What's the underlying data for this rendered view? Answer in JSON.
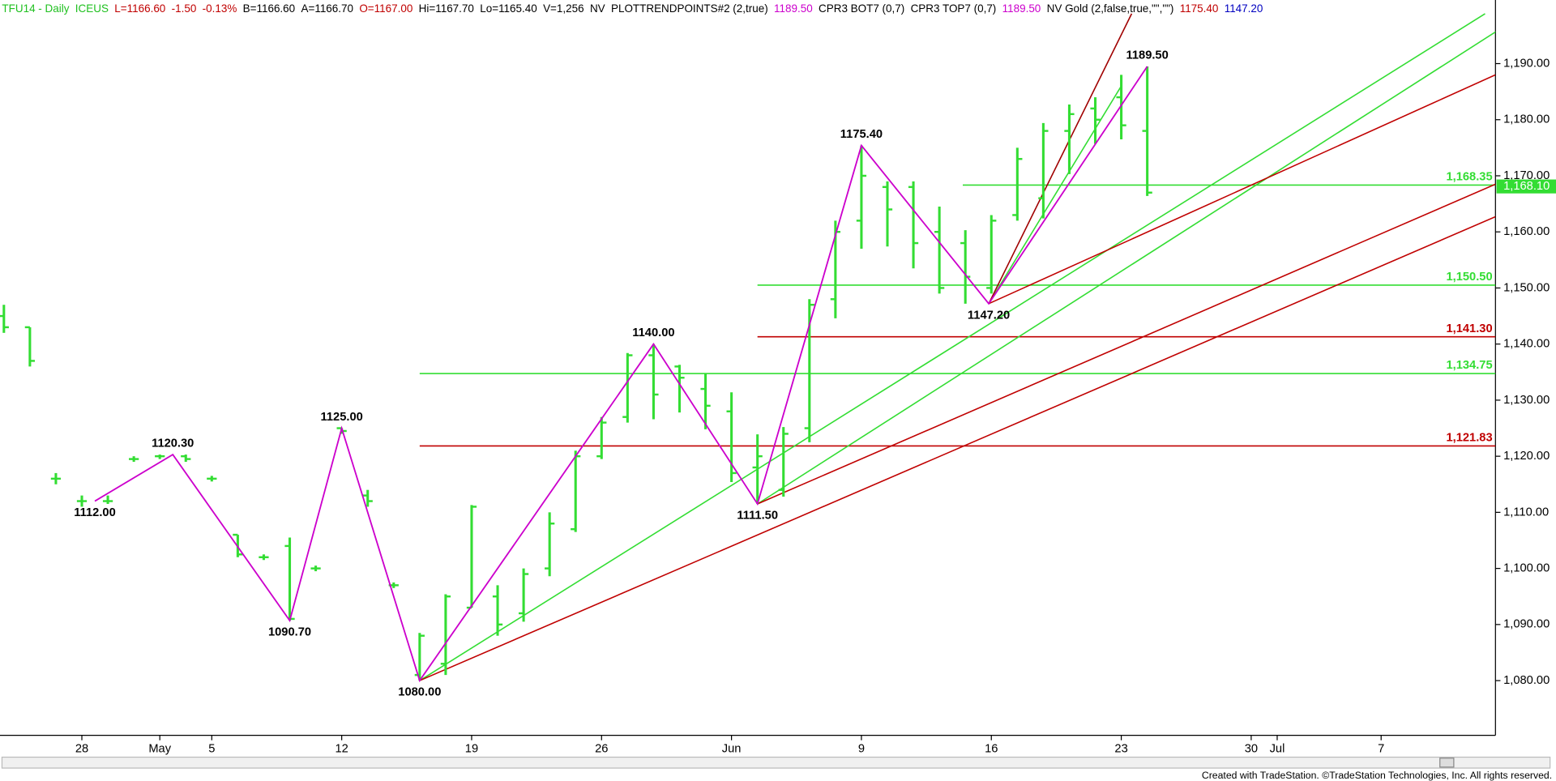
{
  "chart_data": {
    "type": "ohlc",
    "header": [
      {
        "text": "TFU14 - Daily",
        "color": "#20c020"
      },
      {
        "text": "ICEUS",
        "color": "#20c020"
      },
      {
        "text": "L=1166.60",
        "color": "#c00000"
      },
      {
        "text": "-1.50",
        "color": "#c00000"
      },
      {
        "text": "-0.13%",
        "color": "#c00000"
      },
      {
        "text": "B=1166.60",
        "color": "#000000"
      },
      {
        "text": "A=1166.70",
        "color": "#000000"
      },
      {
        "text": "O=1167.00",
        "color": "#c00000"
      },
      {
        "text": "Hi=1167.70",
        "color": "#000000"
      },
      {
        "text": "Lo=1165.40",
        "color": "#000000"
      },
      {
        "text": "V=1,256",
        "color": "#000000"
      },
      {
        "text": "NV",
        "color": "#000000"
      },
      {
        "text": "PLOTTRENDPOINTS#2 (2,true)",
        "color": "#000000"
      },
      {
        "text": "1189.50",
        "color": "#cc00cc"
      },
      {
        "text": "CPR3 BOT7 (0,7)",
        "color": "#000000"
      },
      {
        "text": "CPR3 TOP7 (0,7)",
        "color": "#000000"
      },
      {
        "text": "1189.50",
        "color": "#cc00cc"
      },
      {
        "text": "NV Gold (2,false,true,\"\",\"\")",
        "color": "#000000"
      },
      {
        "text": "1175.40",
        "color": "#c00000"
      },
      {
        "text": "1147.20",
        "color": "#0000c0"
      }
    ],
    "bar_color": "#33dd33",
    "open": [
      1145,
      1143,
      1116,
      1112,
      1112,
      1119.5,
      1120,
      1120,
      1116,
      1106,
      1102,
      1104,
      1100,
      1125,
      1113,
      1097,
      1081,
      1083,
      1093,
      1095,
      1092,
      1100,
      1107,
      1120,
      1127,
      1138,
      1136,
      1132,
      1128,
      1118,
      1114,
      1125,
      1148,
      1162,
      1168,
      1168,
      1160,
      1158,
      1150,
      1163,
      1166,
      1178,
      1182,
      1184,
      1178
    ],
    "high": [
      1147,
      1143,
      1117,
      1113,
      1113,
      1120,
      1120.3,
      1120.3,
      1116.5,
      1106,
      1102.5,
      1105.5,
      1100.5,
      1125,
      1114,
      1097.5,
      1088.5,
      1095.4,
      1111.3,
      1097,
      1100,
      1110,
      1121,
      1127,
      1138.4,
      1140,
      1136.3,
      1134.7,
      1131.4,
      1123.9,
      1125.2,
      1148,
      1162,
      1175.4,
      1169,
      1169,
      1164.5,
      1160.3,
      1163,
      1175,
      1179.4,
      1182.7,
      1184,
      1188,
      1189.5
    ],
    "low": [
      1142,
      1136,
      1115,
      1111,
      1111.5,
      1119,
      1119.5,
      1119,
      1115.5,
      1102,
      1101.5,
      1090.7,
      1099.5,
      1124,
      1111,
      1096.5,
      1080,
      1081,
      1093,
      1088,
      1090.5,
      1098.6,
      1106.5,
      1119.5,
      1126,
      1126.6,
      1127.8,
      1124.8,
      1115.4,
      1111.5,
      1112.8,
      1122.5,
      1144.6,
      1157,
      1157.4,
      1153.5,
      1149,
      1147.2,
      1149,
      1162,
      1162.4,
      1170.3,
      1175.7,
      1176.5,
      1166.4
    ],
    "close": [
      1143,
      1137,
      1116,
      1112,
      1112,
      1119.5,
      1120,
      1119.5,
      1116,
      1102.5,
      1102,
      1091,
      1100,
      1124.5,
      1112,
      1097,
      1088,
      1095,
      1111,
      1090,
      1099,
      1108,
      1120,
      1126,
      1138,
      1131,
      1134,
      1129,
      1117,
      1120,
      1124,
      1147,
      1160,
      1170,
      1164,
      1158,
      1150,
      1152,
      1162,
      1173,
      1178,
      1181,
      1180,
      1179,
      1167
    ],
    "swings": {
      "x": [
        3.5,
        6.5,
        11,
        13,
        16,
        25,
        29,
        33,
        37.9,
        44
      ],
      "values": [
        1112,
        1120.3,
        1090.7,
        1125,
        1080,
        1140,
        1111.5,
        1175.4,
        1147.2,
        1189.5
      ],
      "value_labels": [
        "1112.00",
        "1120.30",
        "1090.70",
        "1125.00",
        "1080.00",
        "1140.00",
        "1111.50",
        "1175.40",
        "1147.20",
        "1189.50"
      ],
      "color": "#cc00cc"
    },
    "levels": [
      {
        "value": 1168.35,
        "label": "1,168.35",
        "color": "#33dd33",
        "from": 36.9
      },
      {
        "value": 1150.5,
        "label": "1,150.50",
        "color": "#33dd33",
        "from": 29
      },
      {
        "value": 1141.3,
        "label": "1,141.30",
        "color": "#c00000",
        "from": 29
      },
      {
        "value": 1134.75,
        "label": "1,134.75",
        "color": "#33dd33",
        "from": 16
      },
      {
        "value": 1121.83,
        "label": "1,121.83",
        "color": "#c00000",
        "from": 16
      }
    ],
    "trend_lines": [
      {
        "color": "#33dd33",
        "points": [
          [
            16,
            1080
          ],
          [
            57,
            1198.9
          ]
        ]
      },
      {
        "color": "#33dd33",
        "points": [
          [
            29,
            1111.5
          ],
          [
            58.5,
            1198.9
          ]
        ]
      },
      {
        "color": "#33dd33",
        "points": [
          [
            37.9,
            1147.2
          ],
          [
            43,
            1186
          ]
        ]
      },
      {
        "color": "#a00000",
        "points": [
          [
            37.9,
            1147.2
          ],
          [
            43.4,
            1198.9
          ]
        ]
      },
      {
        "color": "#c00000",
        "points": [
          [
            37.9,
            1147.2
          ],
          [
            57.4,
            1188
          ]
        ]
      },
      {
        "color": "#c00000",
        "points": [
          [
            29,
            1111.5
          ],
          [
            57.4,
            1168.5
          ]
        ]
      },
      {
        "color": "#c00000",
        "points": [
          [
            16,
            1080
          ],
          [
            57.4,
            1162.7
          ]
        ]
      }
    ],
    "last_price": {
      "value": 1168.1,
      "label": "1,168.10",
      "color": "#33dd33"
    },
    "xlim": [
      -0.15,
      57.4
    ],
    "xticks": [
      {
        "value": 3,
        "label": "28"
      },
      {
        "value": 6,
        "label": "May"
      },
      {
        "value": 8,
        "label": "5"
      },
      {
        "value": 13,
        "label": "12"
      },
      {
        "value": 18,
        "label": "19"
      },
      {
        "value": 23,
        "label": "26"
      },
      {
        "value": 28,
        "label": "Jun"
      },
      {
        "value": 33,
        "label": "9"
      },
      {
        "value": 38,
        "label": "16"
      },
      {
        "value": 43,
        "label": "23"
      },
      {
        "value": 48,
        "label": "30"
      },
      {
        "value": 49,
        "label": "Jul"
      },
      {
        "value": 53,
        "label": "7"
      }
    ],
    "ylim": [
      1070.25,
      1201.34
    ],
    "yticks": [
      {
        "value": 1080,
        "label": "1,080.00"
      },
      {
        "value": 1090,
        "label": "1,090.00"
      },
      {
        "value": 1100,
        "label": "1,100.00"
      },
      {
        "value": 1110,
        "label": "1,110.00"
      },
      {
        "value": 1120,
        "label": "1,120.00"
      },
      {
        "value": 1130,
        "label": "1,130.00"
      },
      {
        "value": 1140,
        "label": "1,140.00"
      },
      {
        "value": 1150,
        "label": "1,150.00"
      },
      {
        "value": 1160,
        "label": "1,160.00"
      },
      {
        "value": 1170,
        "label": "1,170.00"
      },
      {
        "value": 1180,
        "label": "1,180.00"
      },
      {
        "value": 1190,
        "label": "1,190.00"
      }
    ],
    "footer": "Created with TradeStation. ©TradeStation Technologies, Inc. All rights reserved."
  }
}
